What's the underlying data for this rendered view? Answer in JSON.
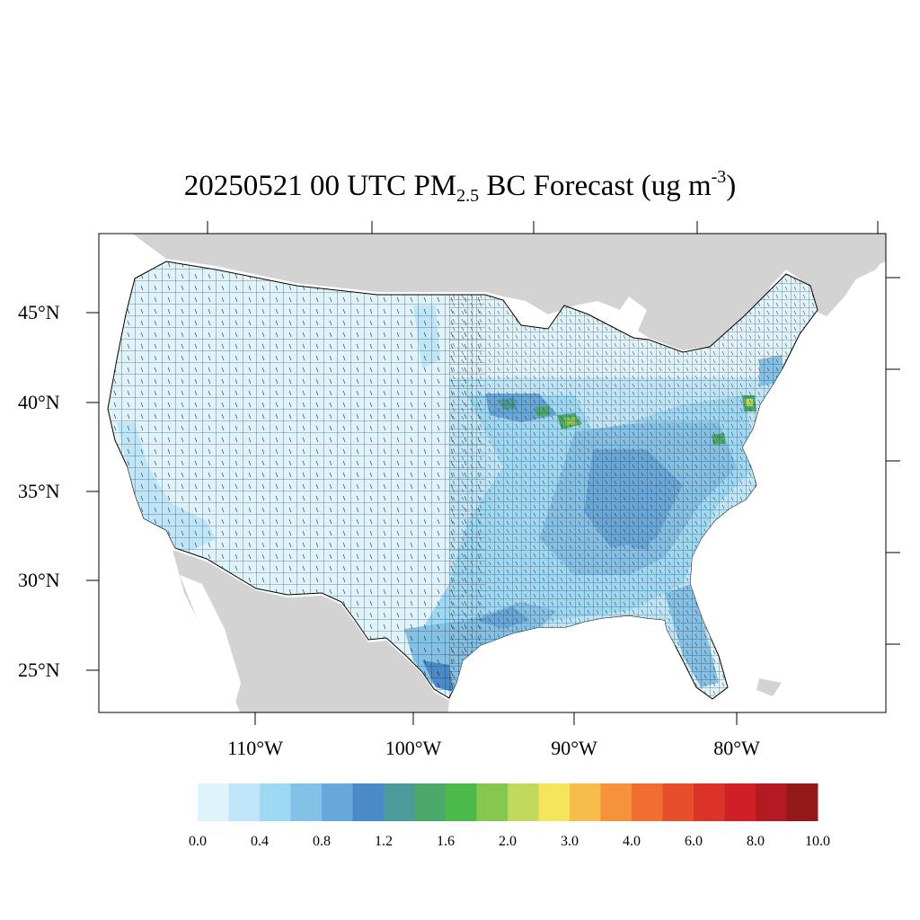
{
  "title": {
    "prefix": "20250521 00 UTC PM",
    "subscript": "2.5",
    "middle": " BC Forecast (ug m",
    "superscript": "-3",
    "suffix": ")"
  },
  "lat_labels": [
    "45°N",
    "40°N",
    "35°N",
    "30°N",
    "25°N"
  ],
  "lon_labels": [
    "110°W",
    "100°W",
    "90°W",
    "80°W"
  ],
  "colorbar": {
    "labels": [
      "0.0",
      "0.4",
      "0.8",
      "1.2",
      "1.6",
      "2.0",
      "3.0",
      "4.0",
      "6.0",
      "8.0",
      "10.0"
    ],
    "colors": [
      "#dff3fb",
      "#bee6f8",
      "#9dd8f4",
      "#84c1e6",
      "#68a7d9",
      "#4b8ac8",
      "#4b9b9b",
      "#4aa96b",
      "#4cba4a",
      "#86c84f",
      "#c0d85b",
      "#f5e55d",
      "#f7bd4c",
      "#f6923c",
      "#f06c2f",
      "#e64f2a",
      "#dc3328",
      "#d01f26",
      "#b41a22",
      "#951819"
    ]
  },
  "colors": {
    "land_other": "#d3d3d3",
    "water": "#ffffff",
    "us_base": "#dff3fb",
    "county_border": "#000000"
  }
}
